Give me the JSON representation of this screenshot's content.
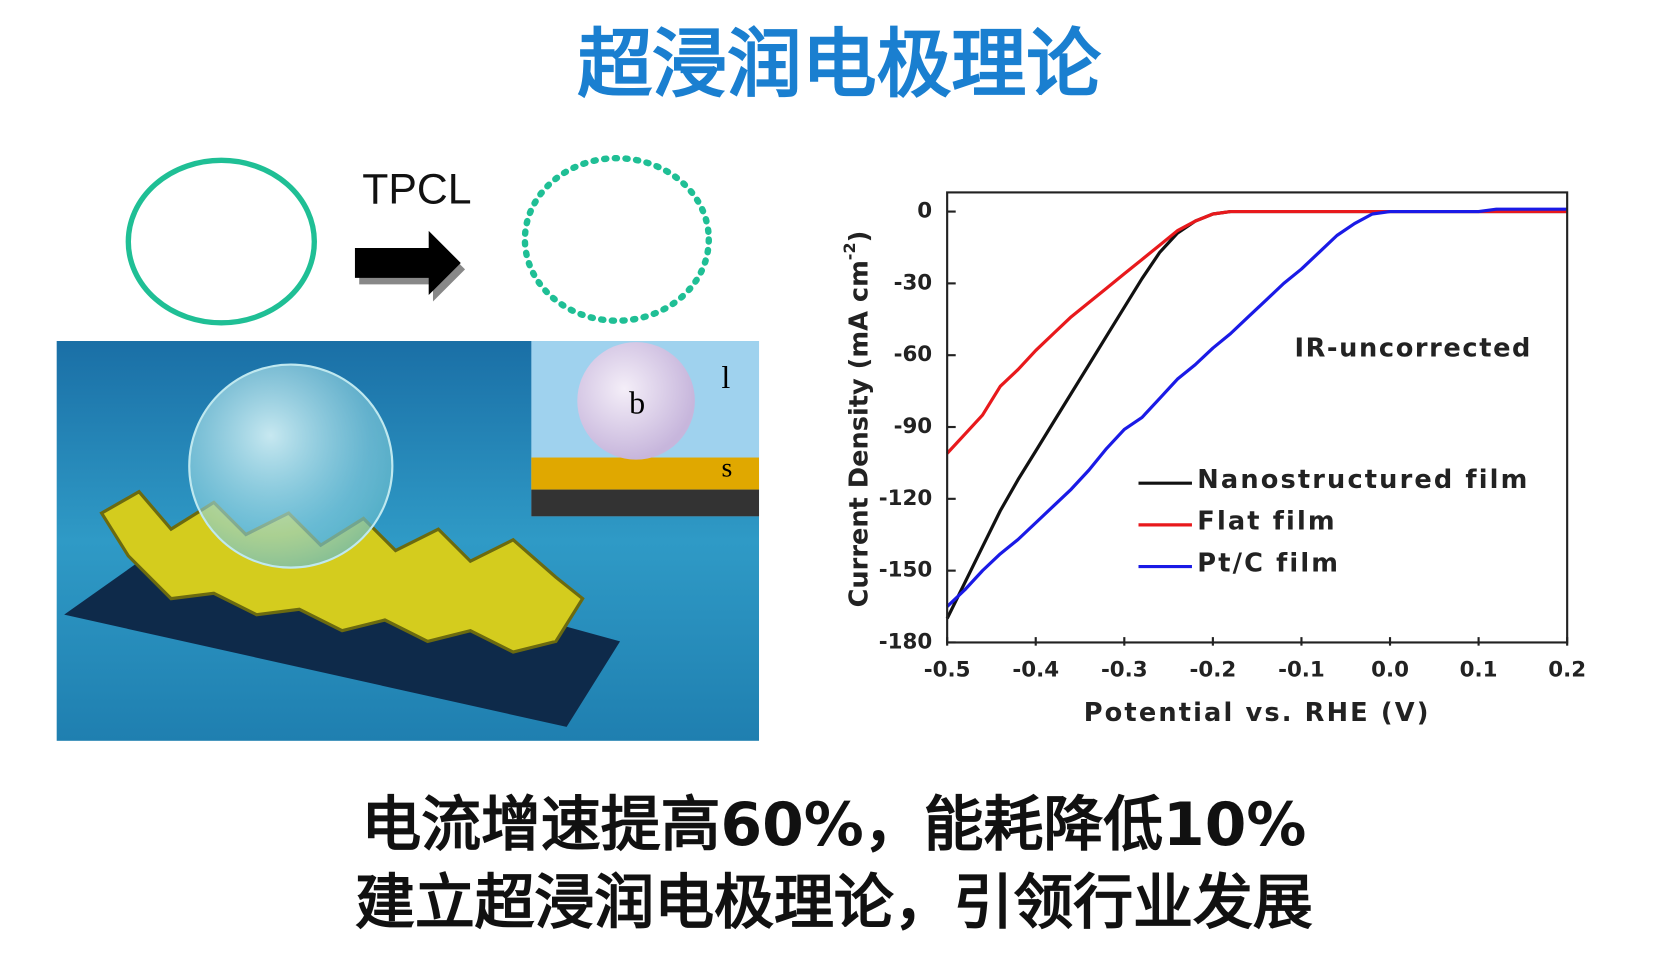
{
  "title": "超浸润电极理论",
  "diagram": {
    "arrow_label": "TPCL",
    "inset_labels": [
      "b",
      "l",
      "s"
    ]
  },
  "chart_data": {
    "type": "line",
    "annotation": "IR-uncorrected",
    "xlabel": "Potential vs. RHE (V)",
    "ylabel": [
      "Current Density (mA cm",
      "-2",
      ")"
    ],
    "x": [
      -0.5,
      -0.48,
      -0.46,
      -0.44,
      -0.42,
      -0.4,
      -0.38,
      -0.36,
      -0.34,
      -0.32,
      -0.3,
      -0.28,
      -0.26,
      -0.24,
      -0.22,
      -0.2,
      -0.18,
      -0.16,
      -0.14,
      -0.12,
      -0.1,
      -0.08,
      -0.06,
      -0.04,
      -0.02,
      0,
      0.02,
      0.04,
      0.06,
      0.08,
      0.1,
      0.12,
      0.14,
      0.16,
      0.18,
      0.2
    ],
    "series": [
      {
        "name": "Nanostructured film",
        "color": "#111111",
        "values": [
          -170,
          -155,
          -140,
          -125,
          -112,
          -100,
          -88,
          -76,
          -64,
          -52,
          -40,
          -28,
          -17,
          -9,
          -4,
          -1,
          0,
          0,
          0,
          0,
          0,
          0,
          0,
          0,
          0,
          0,
          0,
          0,
          0,
          0,
          0,
          0,
          0,
          0,
          0,
          0
        ]
      },
      {
        "name": "Flat film",
        "color": "#e8191c",
        "values": [
          -101,
          -93,
          -85,
          -73,
          -66,
          -58,
          -51,
          -44,
          -38,
          -32,
          -26,
          -20,
          -14,
          -8,
          -4,
          -1,
          0,
          0,
          0,
          0,
          0,
          0,
          0,
          0,
          0,
          0,
          0,
          0,
          0,
          0,
          0,
          0,
          0,
          0,
          0,
          0
        ]
      },
      {
        "name": "Pt/C film",
        "color": "#1a1ae6",
        "values": [
          -165,
          -158,
          -150,
          -143,
          -137,
          -130,
          -123,
          -116,
          -108,
          -99,
          -91,
          -86,
          -78,
          -70,
          -64,
          -57,
          -51,
          -44,
          -37,
          -30,
          -24,
          -17,
          -10,
          -5,
          -1,
          0,
          0,
          0,
          0,
          0,
          0,
          1,
          1,
          1,
          1,
          1
        ]
      }
    ],
    "xlim": [
      -0.5,
      0.2
    ],
    "xticks": [
      -0.5,
      -0.4,
      -0.3,
      -0.2,
      -0.1,
      {
        "value": 0,
        "label": "0.0"
      },
      0.1,
      0.2
    ],
    "ylim": [
      -180,
      8
    ],
    "yticks": [
      0,
      -30,
      -60,
      -90,
      -120,
      -150,
      -180
    ],
    "legend": "right"
  },
  "footer": [
    "电流增速提高60%，能耗降低10%",
    "建立超浸润电极理论，引领行业发展"
  ]
}
